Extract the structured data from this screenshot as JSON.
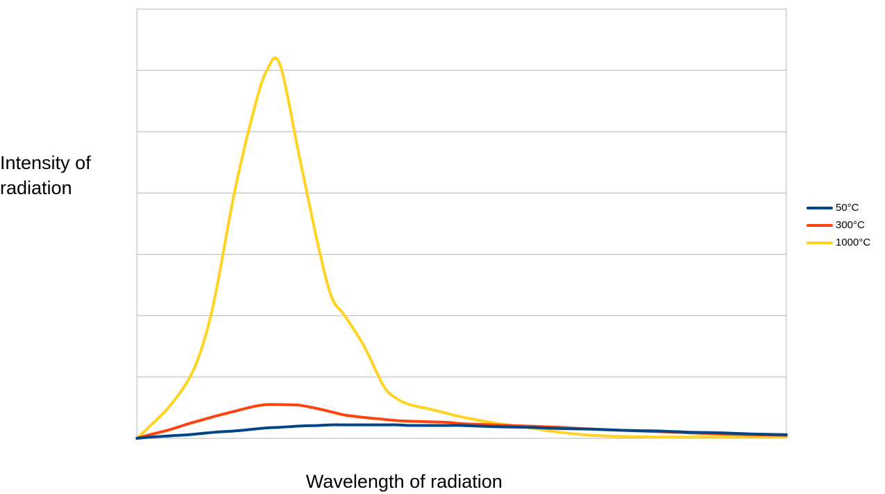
{
  "chart_data": {
    "type": "line",
    "title": "",
    "xlabel": "Wavelength of radiation",
    "ylabel_lines": [
      "Intensity of",
      "radiation"
    ],
    "x": [
      0,
      2,
      5,
      8,
      10,
      12,
      15,
      18,
      20,
      22,
      25,
      28,
      30,
      32,
      35,
      38,
      40,
      42,
      45,
      48,
      50,
      55,
      60,
      65,
      70,
      75,
      80,
      85,
      90,
      95,
      100
    ],
    "xlim": [
      0,
      100
    ],
    "ylim": [
      0,
      700
    ],
    "y_gridlines": [
      0,
      100,
      200,
      300,
      400,
      500,
      600,
      700
    ],
    "grid": true,
    "legend_position": "right",
    "series": [
      {
        "name": "50°C",
        "color": "#004586",
        "values": [
          0,
          2,
          4,
          6,
          8,
          10,
          12,
          15,
          17,
          18,
          20,
          21,
          22,
          22,
          22,
          22,
          22,
          21,
          21,
          21,
          21,
          19,
          18,
          16,
          15,
          13,
          12,
          10,
          9,
          7,
          6
        ]
      },
      {
        "name": "300°C",
        "color": "#ff420e",
        "values": [
          0,
          6,
          14,
          24,
          30,
          36,
          44,
          52,
          55,
          55,
          54,
          48,
          43,
          38,
          34,
          31,
          29,
          28,
          27,
          26,
          24,
          22,
          20,
          18,
          15,
          13,
          11,
          9,
          7,
          6,
          5
        ]
      },
      {
        "name": "1000°C",
        "color": "#ffd320",
        "values": [
          0,
          20,
          52,
          97,
          148,
          230,
          400,
          535,
          600,
          610,
          460,
          310,
          230,
          200,
          150,
          85,
          65,
          55,
          48,
          40,
          35,
          25,
          18,
          10,
          5,
          3,
          2,
          2,
          2,
          2,
          2
        ]
      }
    ]
  }
}
